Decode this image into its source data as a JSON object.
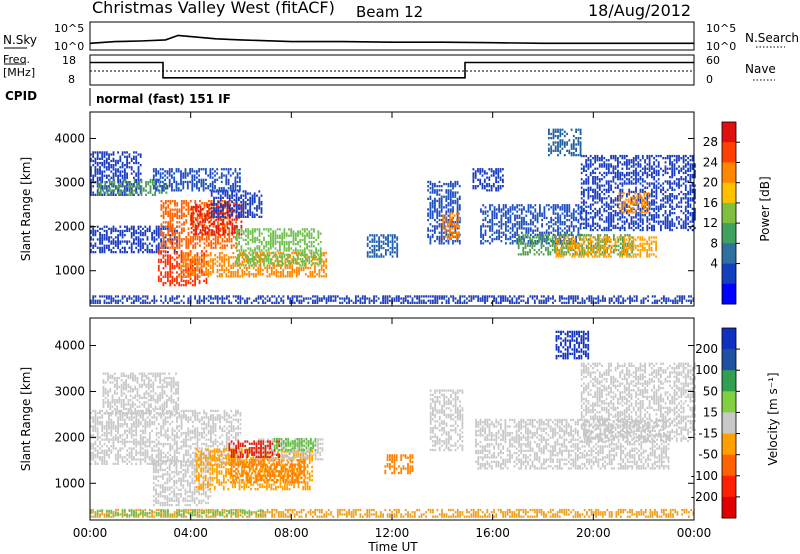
{
  "header": {
    "station": "Christmas Valley West (fitACF)",
    "beam": "Beam 12",
    "date": "18/Aug/2012"
  },
  "noise_panel": {
    "left_label": "N.Sky",
    "left_ticks": [
      "10^5",
      "10^0"
    ],
    "right_ticks": [
      "10^5",
      "10^0"
    ],
    "right_label": "N.Search"
  },
  "freq_panel": {
    "left_label_line1": "Freq.",
    "left_label_line2": "[MHz]",
    "left_ticks": [
      "18",
      "8"
    ],
    "right_ticks": [
      "60",
      "0"
    ],
    "right_label": "Nave",
    "cpid_label": "CPID",
    "cpid_value": "normal (fast) 151 IF"
  },
  "x_axis": {
    "ticks": [
      "00:00",
      "04:00",
      "08:00",
      "12:00",
      "16:00",
      "20:00",
      "00:00"
    ],
    "label": "Time UT"
  },
  "chart_data": [
    {
      "type": "heatmap",
      "name": "power",
      "xlabel": "Time UT",
      "ylabel": "Slant Range [km]",
      "xlim": [
        0,
        24
      ],
      "ylim": [
        200,
        4600
      ],
      "yticks": [
        "1000",
        "2000",
        "3000",
        "4000"
      ],
      "colorbar": {
        "label": "Power [dB]",
        "ticks": [
          "28",
          "24",
          "20",
          "16",
          "12",
          "8",
          "4"
        ],
        "colors": [
          "#e01010",
          "#ff4000",
          "#ff8800",
          "#ffc000",
          "#80c040",
          "#40a060",
          "#3070a0",
          "#1040c0",
          "#0000ff"
        ]
      },
      "regions": [
        {
          "t0": 0.0,
          "t1": 24.0,
          "r0": 250,
          "r1": 400,
          "color": "#2040c0"
        },
        {
          "t0": 0.0,
          "t1": 2.0,
          "r0": 2700,
          "r1": 3700,
          "color": "#1a3cc0"
        },
        {
          "t0": 0.3,
          "t1": 3.0,
          "r0": 2700,
          "r1": 3050,
          "color": "#4a9a5a"
        },
        {
          "t0": 0.0,
          "t1": 3.5,
          "r0": 1400,
          "r1": 2000,
          "color": "#1a3cc0"
        },
        {
          "t0": 2.8,
          "t1": 5.8,
          "r0": 1500,
          "r1": 2600,
          "color": "#ff6000"
        },
        {
          "t0": 4.0,
          "t1": 6.0,
          "r0": 1800,
          "r1": 2500,
          "color": "#e02010"
        },
        {
          "t0": 2.7,
          "t1": 4.6,
          "r0": 650,
          "r1": 1450,
          "color": "#ff3000"
        },
        {
          "t0": 3.5,
          "t1": 9.4,
          "r0": 850,
          "r1": 1400,
          "color": "#ff8800"
        },
        {
          "t0": 5.8,
          "t1": 9.2,
          "r0": 1100,
          "r1": 1950,
          "color": "#70c050"
        },
        {
          "t0": 2.5,
          "t1": 6.0,
          "r0": 2800,
          "r1": 3300,
          "color": "#2050c0"
        },
        {
          "t0": 4.8,
          "t1": 6.8,
          "r0": 2200,
          "r1": 2800,
          "color": "#1a3cc0"
        },
        {
          "t0": 11.0,
          "t1": 12.2,
          "r0": 1300,
          "r1": 1800,
          "color": "#2060b0"
        },
        {
          "t0": 13.4,
          "t1": 14.7,
          "r0": 1600,
          "r1": 3000,
          "color": "#2050c0"
        },
        {
          "t0": 14.0,
          "t1": 14.7,
          "r0": 1700,
          "r1": 2300,
          "color": "#ff8000"
        },
        {
          "t0": 15.2,
          "t1": 16.4,
          "r0": 2800,
          "r1": 3300,
          "color": "#1a3cc0"
        },
        {
          "t0": 15.5,
          "t1": 19.5,
          "r0": 1600,
          "r1": 2500,
          "color": "#2050c0"
        },
        {
          "t0": 17.0,
          "t1": 21.5,
          "r0": 1350,
          "r1": 1800,
          "color": "#50a050"
        },
        {
          "t0": 18.5,
          "t1": 22.5,
          "r0": 1300,
          "r1": 1750,
          "color": "#ffa000"
        },
        {
          "t0": 18.2,
          "t1": 19.5,
          "r0": 3600,
          "r1": 4200,
          "color": "#2060a0"
        },
        {
          "t0": 19.5,
          "t1": 24.0,
          "r0": 1900,
          "r1": 3600,
          "color": "#1a3cc0"
        },
        {
          "t0": 21.0,
          "t1": 22.2,
          "r0": 2300,
          "r1": 2750,
          "color": "#ff9000"
        }
      ]
    },
    {
      "type": "heatmap",
      "name": "velocity",
      "xlabel": "Time UT",
      "ylabel": "Slant Range [km]",
      "xlim": [
        0,
        24
      ],
      "ylim": [
        200,
        4600
      ],
      "yticks": [
        "1000",
        "2000",
        "3000",
        "4000"
      ],
      "colorbar": {
        "label": "Velocity [m s⁻¹]",
        "ticks": [
          "200",
          "100",
          "50",
          "15",
          "-15",
          "-50",
          "-100",
          "-200"
        ],
        "colors": [
          "#1030c0",
          "#2050a0",
          "#30a050",
          "#80d040",
          "#c8c8c8",
          "#ffa000",
          "#ff6000",
          "#ff2000",
          "#e00000"
        ]
      },
      "regions": [
        {
          "t0": 0.0,
          "t1": 24.0,
          "r0": 250,
          "r1": 400,
          "color": "#f0a020"
        },
        {
          "t0": 0.0,
          "t1": 7.0,
          "r0": 280,
          "r1": 380,
          "color": "#70c050"
        },
        {
          "t0": 0.5,
          "t1": 3.5,
          "r0": 2500,
          "r1": 3400,
          "color": "#c8c8c8"
        },
        {
          "t0": 0.0,
          "t1": 6.0,
          "r0": 1400,
          "r1": 2600,
          "color": "#c8c8c8"
        },
        {
          "t0": 2.5,
          "t1": 4.8,
          "r0": 500,
          "r1": 1500,
          "color": "#c8c8c8"
        },
        {
          "t0": 4.2,
          "t1": 8.8,
          "r0": 850,
          "r1": 1750,
          "color": "#ffa000"
        },
        {
          "t0": 5.5,
          "t1": 8.5,
          "r0": 1000,
          "r1": 1500,
          "color": "#ff8000"
        },
        {
          "t0": 6.5,
          "t1": 9.2,
          "r0": 1500,
          "r1": 1950,
          "color": "#c8c8c8"
        },
        {
          "t0": 5.5,
          "t1": 7.5,
          "r0": 1550,
          "r1": 1900,
          "color": "#e02010"
        },
        {
          "t0": 7.3,
          "t1": 9.0,
          "r0": 1700,
          "r1": 1950,
          "color": "#60c040"
        },
        {
          "t0": 11.7,
          "t1": 12.8,
          "r0": 1200,
          "r1": 1600,
          "color": "#ff8000"
        },
        {
          "t0": 13.5,
          "t1": 14.8,
          "r0": 1700,
          "r1": 3000,
          "color": "#c8c8c8"
        },
        {
          "t0": 15.3,
          "t1": 23.0,
          "r0": 1300,
          "r1": 2400,
          "color": "#c8c8c8"
        },
        {
          "t0": 19.5,
          "t1": 24.0,
          "r0": 1900,
          "r1": 3600,
          "color": "#c8c8c8"
        },
        {
          "t0": 18.5,
          "t1": 19.8,
          "r0": 3700,
          "r1": 4300,
          "color": "#1030c0"
        }
      ]
    },
    {
      "type": "line",
      "name": "noise",
      "ylim": [
        0,
        5
      ],
      "series": [
        {
          "x": [
            0,
            1,
            2,
            3,
            3.5,
            4,
            5,
            6,
            8,
            10,
            12,
            14,
            16,
            18,
            20,
            22,
            24
          ],
          "y": [
            1.2,
            1.5,
            1.6,
            1.8,
            2.6,
            2.4,
            2.0,
            1.8,
            1.5,
            1.5,
            1.4,
            1.4,
            1.3,
            1.2,
            1.2,
            1.2,
            1.2
          ]
        }
      ]
    },
    {
      "type": "line",
      "name": "frequency",
      "ylim": [
        8,
        18
      ],
      "series": [
        {
          "x": [
            0,
            2.9,
            2.9,
            14.9,
            14.9,
            24
          ],
          "y": [
            15.5,
            15.5,
            10.4,
            10.4,
            15.5,
            15.5
          ]
        }
      ]
    }
  ]
}
